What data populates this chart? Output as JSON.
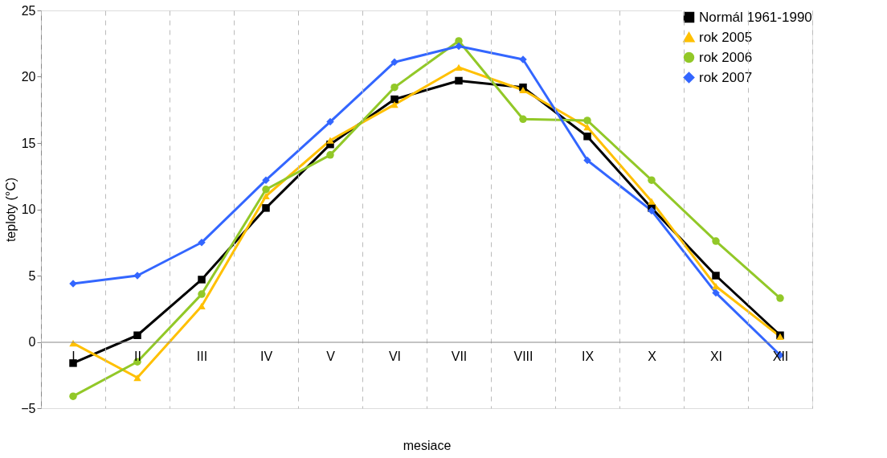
{
  "chart_data": {
    "type": "line",
    "xlabel": "mesiace",
    "ylabel": "teploty (°C)",
    "categories": [
      "I",
      "II",
      "III",
      "IV",
      "V",
      "VI",
      "VII",
      "VIII",
      "IX",
      "X",
      "XI",
      "XII"
    ],
    "series": [
      {
        "name": "Normál 1961-1990",
        "color": "#000000",
        "marker": "square",
        "values": [
          -1.6,
          0.5,
          4.7,
          10.1,
          14.9,
          18.3,
          19.7,
          19.2,
          15.5,
          10.1,
          5.0,
          0.5
        ]
      },
      {
        "name": "rok 2005",
        "color": "#ffc000",
        "marker": "triangle",
        "values": [
          -0.1,
          -2.7,
          2.7,
          11.0,
          15.2,
          17.9,
          20.7,
          19.0,
          16.2,
          10.6,
          4.2,
          0.4
        ]
      },
      {
        "name": "rok 2006",
        "color": "#92c828",
        "marker": "circle",
        "values": [
          -4.1,
          -1.5,
          3.6,
          11.5,
          14.1,
          19.2,
          22.7,
          16.8,
          16.7,
          12.2,
          7.6,
          3.3
        ]
      },
      {
        "name": "rok 2007",
        "color": "#3366ff",
        "marker": "diamond",
        "values": [
          4.4,
          5.0,
          7.5,
          12.2,
          16.6,
          21.1,
          22.3,
          21.3,
          13.7,
          9.9,
          3.7,
          -1.0
        ]
      }
    ],
    "ylim": [
      -5,
      25
    ],
    "yticks": [
      -5,
      0,
      5,
      10,
      15,
      20,
      25
    ],
    "grid": "x",
    "legend": "top right",
    "line_style": "solid"
  }
}
